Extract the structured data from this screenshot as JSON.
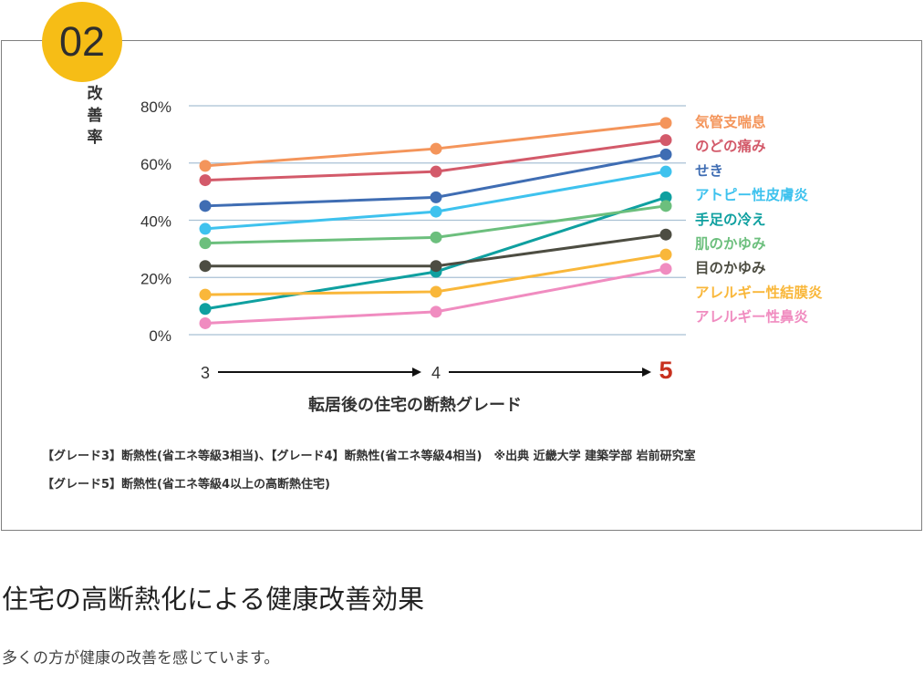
{
  "badge": "02",
  "chart_data": {
    "type": "line",
    "ylabel": "改善率",
    "xlabel": "転居後の住宅の断熱グレード",
    "categories": [
      "3",
      "4",
      "5"
    ],
    "ylim": [
      0,
      80
    ],
    "yticks": [
      0,
      20,
      40,
      60,
      80
    ],
    "ytick_labels": [
      "0%",
      "20%",
      "40%",
      "60%",
      "80%"
    ],
    "grid": true,
    "legend_position": "right",
    "series": [
      {
        "name": "気管支喘息",
        "color": "#f4955b",
        "values": [
          59,
          65,
          74
        ]
      },
      {
        "name": "のどの痛み",
        "color": "#d35a6a",
        "values": [
          54,
          57,
          68
        ]
      },
      {
        "name": "せき",
        "color": "#3f6db3",
        "values": [
          45,
          48,
          63
        ]
      },
      {
        "name": "アトピー性皮膚炎",
        "color": "#3ec2ee",
        "values": [
          37,
          43,
          57
        ]
      },
      {
        "name": "手足の冷え",
        "color": "#0fa0a0",
        "values": [
          9,
          22,
          48
        ]
      },
      {
        "name": "肌のかゆみ",
        "color": "#6cbf7d",
        "values": [
          32,
          34,
          45
        ]
      },
      {
        "name": "目のかゆみ",
        "color": "#4d4d42",
        "values": [
          24,
          24,
          35
        ]
      },
      {
        "name": "アレルギー性結膜炎",
        "color": "#f9b73a",
        "values": [
          14,
          15,
          28
        ]
      },
      {
        "name": "アレルギー性鼻炎",
        "color": "#f08cc0",
        "values": [
          4,
          8,
          23
        ]
      }
    ],
    "highlight_color": "#c8301e"
  },
  "notes": [
    "【グレード3】断熱性(省エネ等級3相当)、【グレード4】断熱性(省エネ等級4相当)　※出典 近畿大学 建築学部 岩前研究室",
    "【グレード5】断熱性(省エネ等級4以上の高断熱住宅)"
  ],
  "heading": "住宅の高断熱化による健康改善効果",
  "subtext": "多くの方が健康の改善を感じています。"
}
